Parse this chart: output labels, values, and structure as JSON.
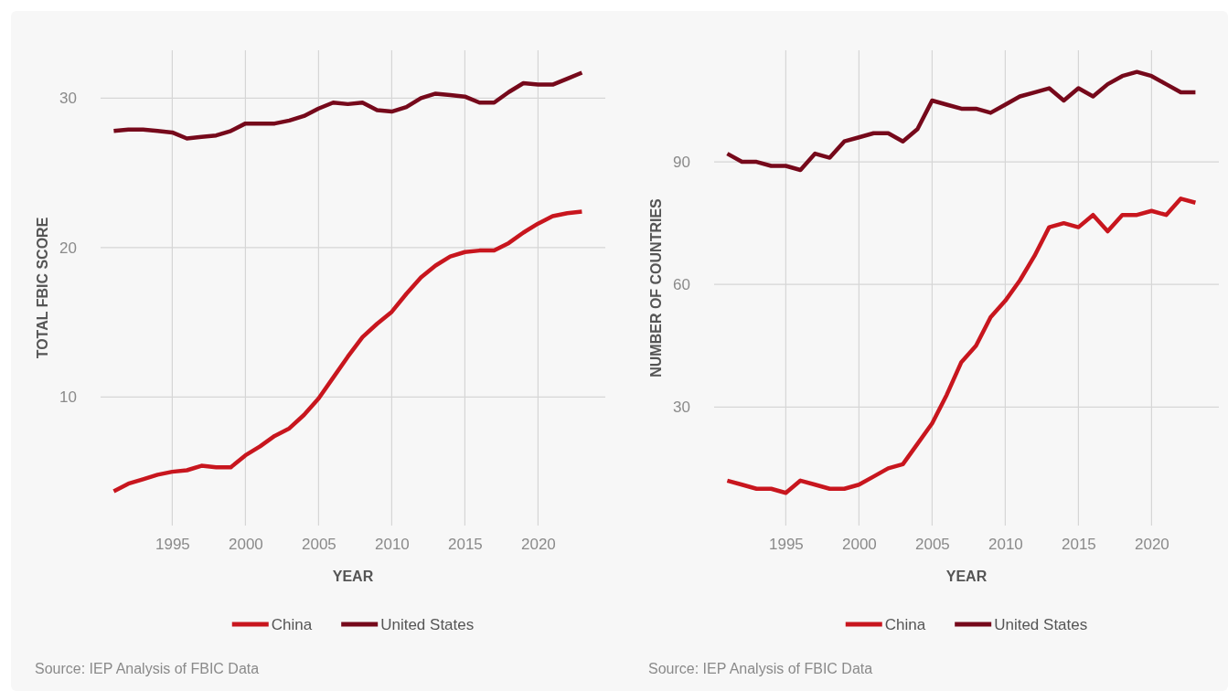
{
  "chart_data": [
    {
      "type": "line",
      "xlabel": "YEAR",
      "ylabel": "TOTAL FBIC SCORE",
      "annotations": [
        "Source: IEP Analysis of FBIC Data"
      ],
      "grid": true,
      "legend": "bottom",
      "line_style": "solid",
      "marker": "none",
      "x": [
        1991,
        1992,
        1993,
        1994,
        1995,
        1996,
        1997,
        1998,
        1999,
        2000,
        2001,
        2002,
        2003,
        2004,
        2005,
        2006,
        2007,
        2008,
        2009,
        2010,
        2011,
        2012,
        2013,
        2014,
        2015,
        2016,
        2017,
        2018,
        2019,
        2020,
        2021,
        2022,
        2023
      ],
      "xlim": [
        1990.1,
        2024.6
      ],
      "xticks": [
        1995,
        2000,
        2005,
        2010,
        2015,
        2020
      ],
      "ylim": [
        1.4,
        33.2
      ],
      "yticks": [
        10,
        20,
        30
      ],
      "series": [
        {
          "name": "China",
          "color": "#c8161e",
          "values": [
            3.7,
            4.2,
            4.5,
            4.8,
            5.0,
            5.1,
            5.4,
            5.3,
            5.3,
            6.1,
            6.7,
            7.4,
            7.9,
            8.8,
            9.9,
            11.3,
            12.7,
            14.0,
            14.9,
            15.7,
            16.9,
            18.0,
            18.8,
            19.4,
            19.7,
            19.8,
            19.8,
            20.3,
            21.0,
            21.6,
            22.1,
            22.3,
            22.4
          ]
        },
        {
          "name": "United States",
          "color": "#76091b",
          "values": [
            27.8,
            27.9,
            27.9,
            27.8,
            27.7,
            27.3,
            27.4,
            27.5,
            27.8,
            28.3,
            28.3,
            28.3,
            28.5,
            28.8,
            29.3,
            29.7,
            29.6,
            29.7,
            29.2,
            29.1,
            29.4,
            30.0,
            30.3,
            30.2,
            30.1,
            29.7,
            29.7,
            30.4,
            31.0,
            30.9,
            30.9,
            31.3,
            31.7
          ]
        }
      ]
    },
    {
      "type": "line",
      "xlabel": "YEAR",
      "ylabel": "NUMBER OF COUNTRIES",
      "annotations": [
        "Source: IEP Analysis of FBIC Data"
      ],
      "grid": true,
      "legend": "bottom",
      "line_style": "solid",
      "marker": "none",
      "x": [
        1991,
        1992,
        1993,
        1994,
        1995,
        1996,
        1997,
        1998,
        1999,
        2000,
        2001,
        2002,
        2003,
        2004,
        2005,
        2006,
        2007,
        2008,
        2009,
        2010,
        2011,
        2012,
        2013,
        2014,
        2015,
        2016,
        2017,
        2018,
        2019,
        2020,
        2021,
        2022,
        2023
      ],
      "xlim": [
        1990.1,
        2024.6
      ],
      "xticks": [
        1995,
        2000,
        2005,
        2010,
        2015,
        2020
      ],
      "ylim": [
        1,
        117.3
      ],
      "yticks": [
        30,
        60,
        90
      ],
      "series": [
        {
          "name": "China",
          "color": "#c8161e",
          "values": [
            12,
            11,
            10,
            10,
            9,
            12,
            11,
            10,
            10,
            11,
            13,
            15,
            16,
            21,
            26,
            33,
            41,
            45,
            52,
            56,
            61,
            67,
            74,
            75,
            74,
            77,
            73,
            77,
            77,
            78,
            77,
            81,
            80
          ]
        },
        {
          "name": "United States",
          "color": "#76091b",
          "values": [
            92,
            90,
            90,
            89,
            89,
            88,
            92,
            91,
            95,
            96,
            97,
            97,
            95,
            98,
            105,
            104,
            103,
            103,
            102,
            104,
            106,
            107,
            108,
            105,
            108,
            106,
            109,
            111,
            112,
            111,
            109,
            107,
            107
          ]
        }
      ]
    }
  ]
}
